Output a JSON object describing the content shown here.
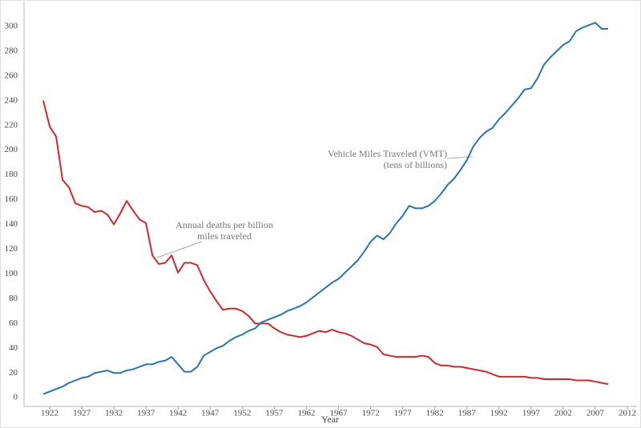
{
  "chart_data": {
    "type": "line",
    "x": [
      1921,
      1922,
      1923,
      1924,
      1925,
      1926,
      1927,
      1928,
      1929,
      1930,
      1931,
      1932,
      1933,
      1934,
      1935,
      1936,
      1937,
      1938,
      1939,
      1940,
      1941,
      1942,
      1943,
      1944,
      1945,
      1946,
      1947,
      1948,
      1949,
      1950,
      1951,
      1952,
      1953,
      1954,
      1955,
      1956,
      1957,
      1958,
      1959,
      1960,
      1961,
      1962,
      1963,
      1964,
      1965,
      1966,
      1967,
      1968,
      1969,
      1970,
      1971,
      1972,
      1973,
      1974,
      1975,
      1976,
      1977,
      1978,
      1979,
      1980,
      1981,
      1982,
      1983,
      1984,
      1985,
      1986,
      1987,
      1988,
      1989,
      1990,
      1991,
      1992,
      1993,
      1994,
      1995,
      1996,
      1997,
      1998,
      1999,
      2000,
      2001,
      2002,
      2003,
      2004,
      2005,
      2006,
      2007,
      2008,
      2009
    ],
    "series": [
      {
        "label": [
          "Annual deaths per billion",
          "miles traveled"
        ],
        "color": "#d4272c",
        "values": [
          240,
          219,
          211,
          176,
          170,
          157,
          155,
          154,
          150,
          151,
          148,
          140,
          149,
          159,
          151,
          144,
          141,
          115,
          108,
          109,
          115,
          101,
          109,
          109,
          107,
          95,
          86,
          78,
          71,
          72,
          72,
          70,
          66,
          60,
          60,
          60,
          56,
          53,
          51,
          50,
          49,
          50,
          52,
          54,
          53,
          55,
          53,
          52,
          50,
          47,
          44,
          43,
          41,
          35,
          34,
          33,
          33,
          33,
          33,
          34,
          33,
          28,
          26,
          26,
          25,
          25,
          24,
          23,
          22,
          21,
          19,
          17,
          17,
          17,
          17,
          17,
          16,
          16,
          15,
          15,
          15,
          15,
          15,
          14,
          14,
          14,
          13,
          12,
          11
        ]
      },
      {
        "label": [
          "Vehicle Miles Traveled (VMT)",
          "(tens of billions)"
        ],
        "color": "#2676b0",
        "values": [
          3,
          5,
          7,
          9,
          12,
          14,
          16,
          17,
          20,
          21,
          22,
          20,
          20,
          22,
          23,
          25,
          27,
          27,
          29,
          30,
          33,
          27,
          21,
          21,
          25,
          34,
          37,
          40,
          42,
          46,
          49,
          51,
          54,
          56,
          61,
          63,
          65,
          67,
          70,
          72,
          74,
          77,
          81,
          85,
          89,
          93,
          96,
          101,
          106,
          111,
          118,
          126,
          131,
          128,
          133,
          141,
          147,
          155,
          153,
          153,
          155,
          159,
          165,
          172,
          177,
          184,
          192,
          203,
          210,
          215,
          218,
          225,
          230,
          236,
          242,
          249,
          250,
          258,
          269,
          275,
          280,
          285,
          288,
          296,
          299,
          301,
          303,
          298,
          298
        ]
      }
    ],
    "x_label": "Year",
    "xlim": [
      1918,
      2013.5
    ],
    "xticks": [
      1922,
      1927,
      1932,
      1937,
      1942,
      1947,
      1952,
      1957,
      1962,
      1967,
      1972,
      1977,
      1982,
      1987,
      1992,
      1997,
      2002,
      2007,
      2012
    ],
    "ylim": [
      -7,
      320
    ],
    "yticks": [
      0,
      20,
      40,
      60,
      80,
      100,
      120,
      140,
      160,
      180,
      200,
      220,
      240,
      260,
      280,
      300
    ]
  }
}
